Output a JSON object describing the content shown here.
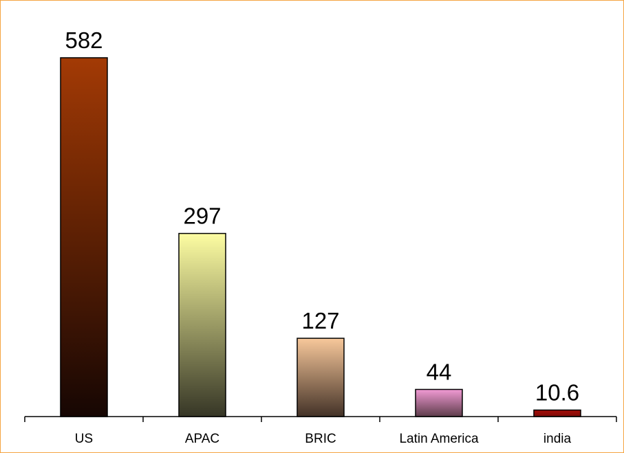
{
  "chart_data": {
    "type": "bar",
    "categories": [
      "US",
      "APAC",
      "BRIC",
      "Latin America",
      "india"
    ],
    "values": [
      582,
      297,
      127,
      44,
      10.6
    ],
    "value_labels": [
      "582",
      "297",
      "127",
      "44",
      "10.6"
    ],
    "ylim": [
      0,
      582
    ],
    "grid": false,
    "legend": "none",
    "bar_gradients": [
      {
        "top": "#a33a05",
        "bottom": "#160603"
      },
      {
        "top": "#fdfda2",
        "bottom": "#363626"
      },
      {
        "top": "#f8c89b",
        "bottom": "#433227"
      },
      {
        "top": "#f19ad4",
        "bottom": "#5d3c4a"
      },
      {
        "top": "#a80d08",
        "bottom": "#7a0c08"
      }
    ],
    "frame_color": "#f4a340"
  }
}
